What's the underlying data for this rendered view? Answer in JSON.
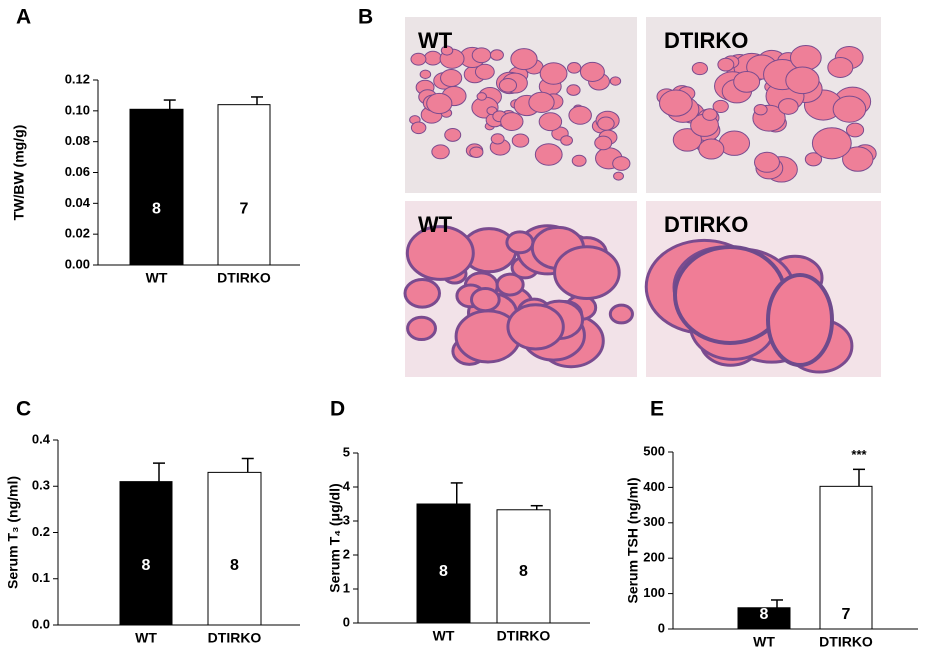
{
  "chart_data": [
    {
      "type": "bar",
      "panel": "A",
      "ylabel": "TW/BW (mg/g)",
      "categories": [
        "WT",
        "DTIRKO"
      ],
      "values": [
        0.101,
        0.104
      ],
      "errors": [
        0.006,
        0.005
      ],
      "colors": [
        "#000000",
        "#ffffff"
      ],
      "n_labels": [
        "8",
        "7"
      ],
      "ylim": [
        0,
        0.12
      ],
      "yticks": [
        {
          "value": 0,
          "label": "0.00"
        },
        {
          "value": 0.02,
          "label": "0.02"
        },
        {
          "value": 0.04,
          "label": "0.04"
        },
        {
          "value": 0.06,
          "label": "0.06"
        },
        {
          "value": 0.08,
          "label": "0.08"
        },
        {
          "value": 0.1,
          "label": "0.10"
        },
        {
          "value": 0.12,
          "label": "0.12"
        }
      ]
    },
    {
      "type": "bar",
      "panel": "C",
      "ylabel": "Serum T₃ (ng/ml)",
      "categories": [
        "WT",
        "DTIRKO"
      ],
      "values": [
        0.31,
        0.33
      ],
      "errors": [
        0.04,
        0.03
      ],
      "colors": [
        "#000000",
        "#ffffff"
      ],
      "n_labels": [
        "8",
        "8"
      ],
      "ylim": [
        0,
        0.4
      ],
      "yticks": [
        {
          "value": 0,
          "label": "0.0"
        },
        0.1,
        0.2,
        0.3,
        0.4
      ]
    },
    {
      "type": "bar",
      "panel": "D",
      "ylabel": "Serum T₄ (μg/dl)",
      "categories": [
        "WT",
        "DTIRKO"
      ],
      "values": [
        3.5,
        3.33
      ],
      "errors": [
        0.62,
        0.12
      ],
      "colors": [
        "#000000",
        "#ffffff"
      ],
      "n_labels": [
        "8",
        "8"
      ],
      "ylim": [
        0,
        5
      ],
      "yticks": [
        0,
        1,
        2,
        3,
        4,
        5
      ]
    },
    {
      "type": "bar",
      "panel": "E",
      "ylabel": "Serum TSH (ng/ml)",
      "categories": [
        "WT",
        "DTIRKO"
      ],
      "values": [
        60,
        403
      ],
      "errors": [
        22,
        48
      ],
      "colors": [
        "#000000",
        "#ffffff"
      ],
      "n_labels": [
        "8",
        "7"
      ],
      "significance": [
        null,
        "***"
      ],
      "ylim": [
        0,
        500
      ],
      "yticks": [
        0,
        100,
        200,
        300,
        400,
        500
      ]
    }
  ],
  "images": {
    "panel": "B",
    "labels": [
      "WT",
      "DTIRKO",
      "WT",
      "DTIRKO"
    ]
  }
}
